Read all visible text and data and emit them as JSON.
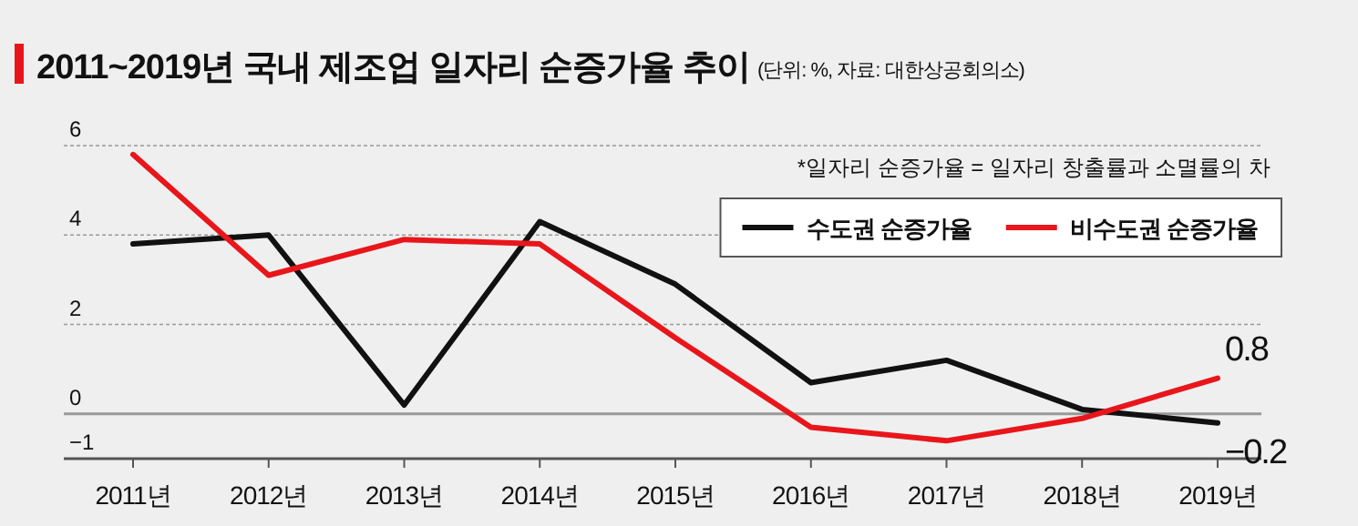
{
  "chart_data": {
    "type": "line",
    "title": "2011~2019년 국내 제조업 일자리 순증가율 추이",
    "subtitle": "(단위: %, 자료: 대한상공회의소)",
    "annotations": [
      "*일자리 순증가율 = 일자리 창출률과 소멸률의 차"
    ],
    "categories": [
      "2011년",
      "2012년",
      "2013년",
      "2014년",
      "2015년",
      "2016년",
      "2017년",
      "2018년",
      "2019년"
    ],
    "series": [
      {
        "name": "수도권 순증가율",
        "color": "#111111",
        "values": [
          3.8,
          4.0,
          0.2,
          4.3,
          2.9,
          0.7,
          1.2,
          0.1,
          -0.2
        ],
        "value_labels": [
          null,
          null,
          null,
          null,
          null,
          null,
          null,
          null,
          "−0.2"
        ]
      },
      {
        "name": "비수도권 순증가율",
        "color": "#e8161b",
        "values": [
          5.8,
          3.1,
          3.9,
          3.8,
          1.7,
          -0.3,
          -0.6,
          -0.1,
          0.8
        ],
        "value_labels": [
          null,
          null,
          null,
          null,
          null,
          null,
          null,
          null,
          "0.8"
        ]
      }
    ],
    "ylim": [
      -1,
      6
    ],
    "yticks": [
      {
        "value": -1,
        "label": "−1"
      },
      0,
      2,
      4,
      6
    ],
    "grid": "y",
    "legend": "top right",
    "marker": "none",
    "line_style": "solid"
  }
}
